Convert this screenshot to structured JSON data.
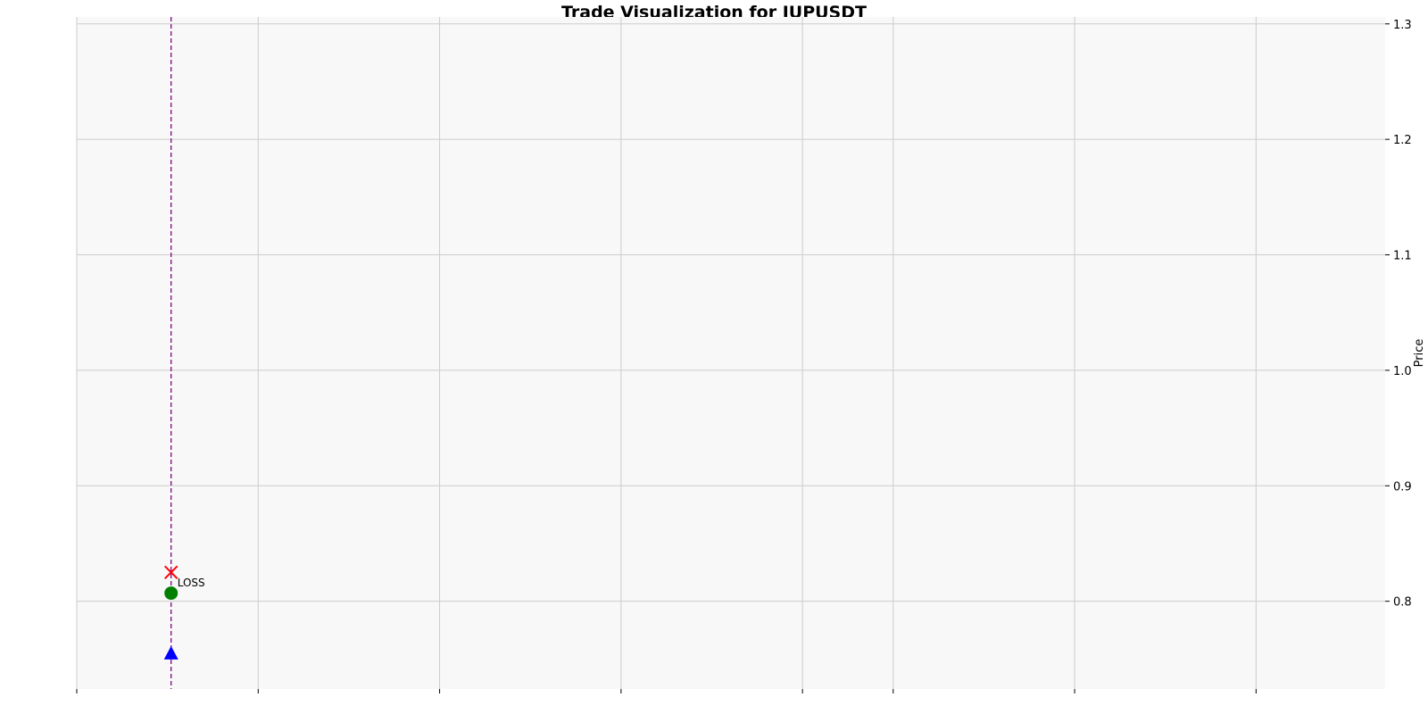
{
  "chart_data": {
    "type": "scatter",
    "title": "Trade Visualization for JUPUSDT",
    "xlabel": "",
    "ylabel": "Price",
    "ylim": [
      0.724,
      1.306
    ],
    "xlim": [
      0,
      7
    ],
    "y_ticks": [
      "0.8",
      "0.9",
      "1.0",
      "1.1",
      "1.2",
      "1.3"
    ],
    "y_tick_values": [
      0.8,
      0.9,
      1.0,
      1.1,
      1.2,
      1.3
    ],
    "x_tick_values": [
      0,
      1,
      2,
      3,
      4,
      4.5,
      5.5,
      6.5
    ],
    "x_tick_labels_shown": false,
    "grid": true,
    "y_axis_side": "right",
    "trade_time": 0.52,
    "points": [
      {
        "name": "entry",
        "marker": "triangle",
        "x": 0.52,
        "y": 0.755,
        "color": "#0000ff"
      },
      {
        "name": "exit",
        "marker": "circle",
        "x": 0.52,
        "y": 0.807,
        "color": "#008000"
      },
      {
        "name": "stop-loss",
        "marker": "x",
        "x": 0.52,
        "y": 0.825,
        "color": "#ff0000"
      }
    ],
    "annotations": [
      {
        "text": "LOSS",
        "x": 0.52,
        "y": 0.816
      }
    ],
    "vline": {
      "x": 0.52,
      "style": "dashed",
      "color": "#800080"
    }
  },
  "colors": {
    "plot_background": "#f8f8f8",
    "grid": "#cccccc"
  }
}
